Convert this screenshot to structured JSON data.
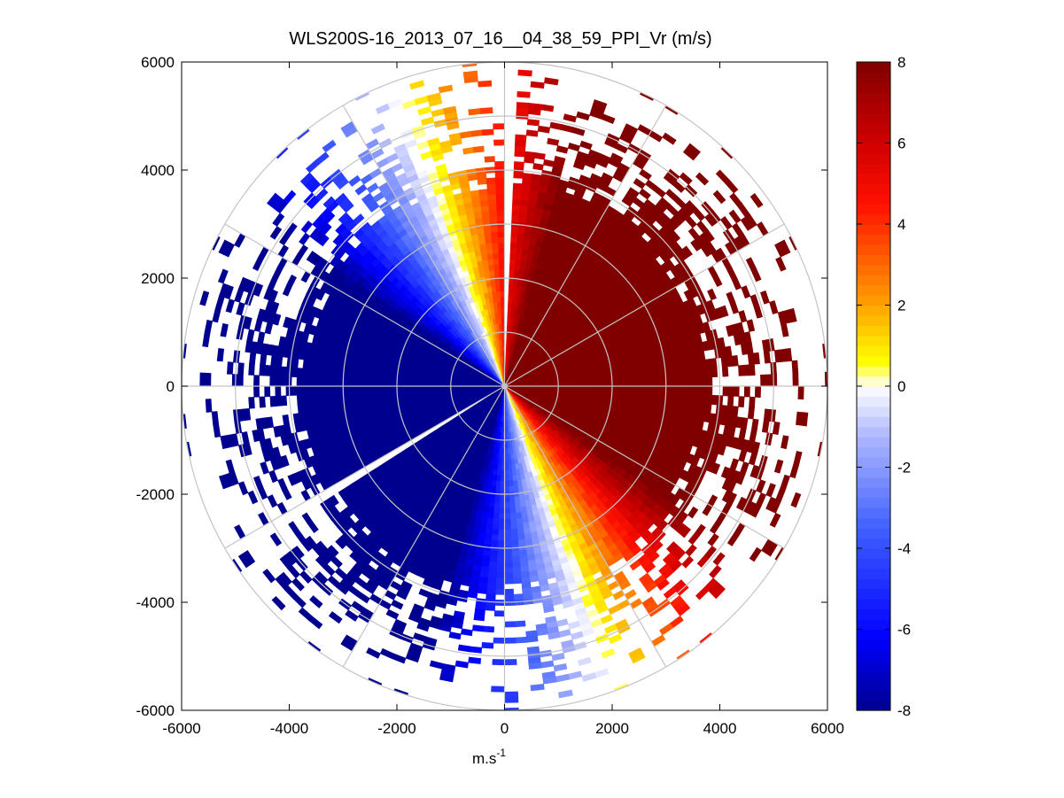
{
  "chart_data": {
    "type": "heatmap",
    "subtype": "polar-ppi",
    "title": "WLS200S-16_2013_07_16__04_38_59_PPI_Vr (m/s)",
    "xlabel_main": "m.s",
    "xlabel_sup": "-1",
    "ylabel": "",
    "xlim": [
      -6000,
      6000
    ],
    "ylim": [
      -6000,
      6000
    ],
    "xticks": [
      -6000,
      -4000,
      -2000,
      0,
      2000,
      4000,
      6000
    ],
    "yticks": [
      -6000,
      -4000,
      -2000,
      0,
      2000,
      4000,
      6000
    ],
    "xtick_labels": [
      "-6000",
      "-4000",
      "-2000",
      "0",
      "2000",
      "4000",
      "6000"
    ],
    "ytick_labels": [
      "-6000",
      "-4000",
      "-2000",
      "0",
      "2000",
      "4000",
      "6000"
    ],
    "range_rings_m": [
      1000,
      2000,
      3000,
      4000,
      5000,
      6000
    ],
    "spokes_deg": [
      0,
      30,
      60,
      90,
      120,
      150,
      180,
      210,
      240,
      270,
      300,
      330
    ],
    "max_range_m": 6000,
    "wind_from_azimuth_deg": 250,
    "vr_saturation_ms": 8,
    "colorbar": {
      "range": [
        -8,
        8
      ],
      "ticks": [
        8,
        6,
        4,
        2,
        0,
        -2,
        -4,
        -6,
        -8
      ],
      "tick_labels": [
        "8",
        "6",
        "4",
        "2",
        "0",
        "-2",
        "-4",
        "-6",
        "-8"
      ],
      "colormap": "blue-white-yellow-red",
      "stops": [
        {
          "v": -8,
          "color": "#00008f"
        },
        {
          "v": -6.2,
          "color": "#0000ff"
        },
        {
          "v": -3.5,
          "color": "#4060ff"
        },
        {
          "v": -1.2,
          "color": "#b0b8ff"
        },
        {
          "v": 0,
          "color": "#ffffff"
        },
        {
          "v": 0.6,
          "color": "#ffff00"
        },
        {
          "v": 2.3,
          "color": "#ff9000"
        },
        {
          "v": 4.5,
          "color": "#ff1000"
        },
        {
          "v": 6.0,
          "color": "#d00000"
        },
        {
          "v": 8,
          "color": "#800000"
        }
      ]
    }
  }
}
